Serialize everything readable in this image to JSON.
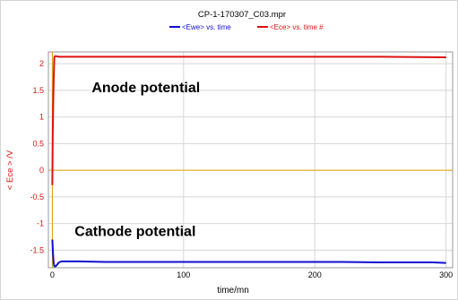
{
  "chart_data": {
    "type": "line",
    "title": "CP-1-170307_C03.mpr",
    "xlabel": "time/mn",
    "ylabel": "< Ece > /V",
    "xlim": [
      -3,
      305
    ],
    "ylim": [
      -1.83,
      2.22
    ],
    "xticks": [
      0,
      100,
      200,
      300
    ],
    "yticks": [
      -1.5,
      -1,
      -0.5,
      0,
      0.5,
      1,
      1.5,
      2
    ],
    "ytick_labels": [
      "-1.5",
      "-1",
      "-0.5",
      "0",
      "0.5",
      "1",
      "1.5",
      "2"
    ],
    "grid": true,
    "legend_position": "top-center",
    "legend": [
      "<Ewe> vs. time",
      "<Ece> vs. time #"
    ],
    "series": [
      {
        "name": "<Ewe> vs. time",
        "color": "#1010d0",
        "x": [
          0,
          0.5,
          1,
          1.5,
          2,
          3,
          4,
          5,
          7,
          10,
          20,
          40,
          60,
          80,
          100,
          120,
          150,
          180,
          200,
          220,
          250,
          270,
          290,
          300
        ],
        "y": [
          -1.3,
          -1.55,
          -1.75,
          -1.8,
          -1.81,
          -1.79,
          -1.76,
          -1.73,
          -1.71,
          -1.71,
          -1.71,
          -1.72,
          -1.72,
          -1.72,
          -1.72,
          -1.72,
          -1.72,
          -1.72,
          -1.72,
          -1.72,
          -1.73,
          -1.73,
          -1.73,
          -1.74
        ]
      },
      {
        "name": "<Ece> vs. time #",
        "color": "#dd1111",
        "x": [
          0,
          0.3,
          0.6,
          1,
          1.5,
          2,
          3,
          5,
          10,
          50,
          100,
          150,
          200,
          250,
          300
        ],
        "y": [
          -0.28,
          0.6,
          1.2,
          1.7,
          2.12,
          2.14,
          2.14,
          2.13,
          2.13,
          2.13,
          2.13,
          2.13,
          2.13,
          2.13,
          2.12
        ]
      }
    ],
    "reference_lines": [
      {
        "axis": "y",
        "value": 0,
        "color": "#e0a000"
      },
      {
        "axis": "x",
        "value": 0,
        "color": "#e0a000"
      }
    ],
    "annotations": [
      {
        "text": "Anode potential",
        "x": 30,
        "y": 1.46
      },
      {
        "text": "Cathode potential",
        "x": 17,
        "y": -1.23
      }
    ]
  }
}
